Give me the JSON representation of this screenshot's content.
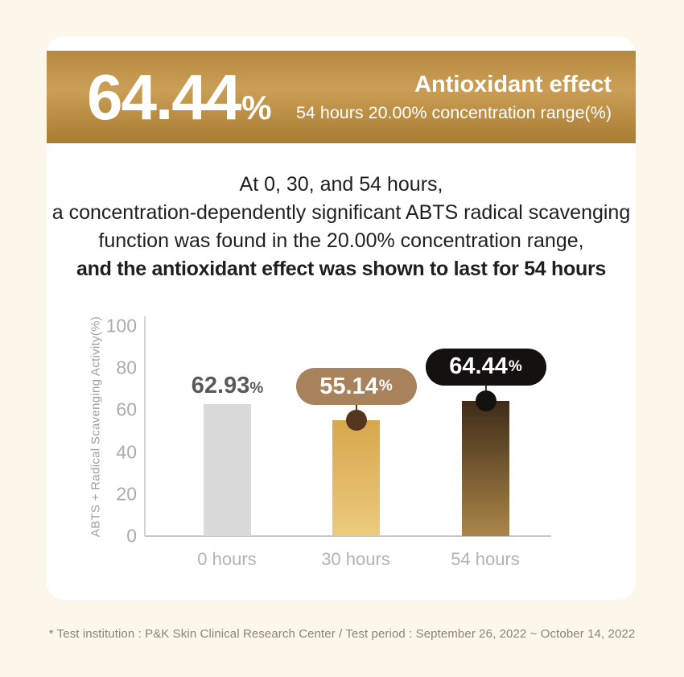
{
  "banner": {
    "highlight_value": "64.44",
    "highlight_unit": "%",
    "title": "Antioxidant effect",
    "subtitle": "54 hours 20.00% concentration range(%)"
  },
  "description": {
    "lines": [
      "At 0, 30, and 54 hours,",
      "a concentration-dependently significant ABTS radical scavenging",
      "function was found in the 20.00% concentration range,",
      "and the antioxidant effect was shown to last for 54 hours"
    ]
  },
  "chart_data": {
    "type": "bar",
    "title": "",
    "categories": [
      "0 hours",
      "30 hours",
      "54 hours"
    ],
    "values": [
      62.93,
      55.14,
      64.44
    ],
    "value_labels": [
      "62.93",
      "55.14",
      "64.44"
    ],
    "unit": "%",
    "xlabel": "",
    "ylabel": "ABTS + Radical Scavenging Activity(%)",
    "ylim": [
      0,
      100
    ],
    "yticks": [
      0,
      20,
      40,
      60,
      80,
      100
    ],
    "grid": false,
    "legend": false,
    "bar_styles": [
      {
        "type": "solid",
        "color": "#dadada"
      },
      {
        "type": "gradient",
        "from": "#d7a74c",
        "to": "#ecca7d"
      },
      {
        "type": "gradient",
        "from": "#3e2b19",
        "to": "#aa8648"
      }
    ],
    "callouts": [
      {
        "style": "plain",
        "text_color": "#58595b"
      },
      {
        "style": "pill",
        "bg": "#a8825b",
        "dot": "#53361d",
        "line": "#53361d"
      },
      {
        "style": "pill",
        "bg": "#141210",
        "dot": "#141210",
        "line": "#4a3b22"
      }
    ],
    "colors": {
      "banner_gold_top": "#b6893f",
      "banner_gold_mid": "#cb9e57",
      "banner_gold_bottom": "#a87c31",
      "page_background": "#fcf7ea",
      "axis_gray": "#c6c6c6",
      "tick_gray": "#ababab"
    }
  },
  "footnote": {
    "text": "* Test institution : P&K Skin Clinical Research Center / Test period : September 26, 2022 ~ October 14, 2022"
  }
}
